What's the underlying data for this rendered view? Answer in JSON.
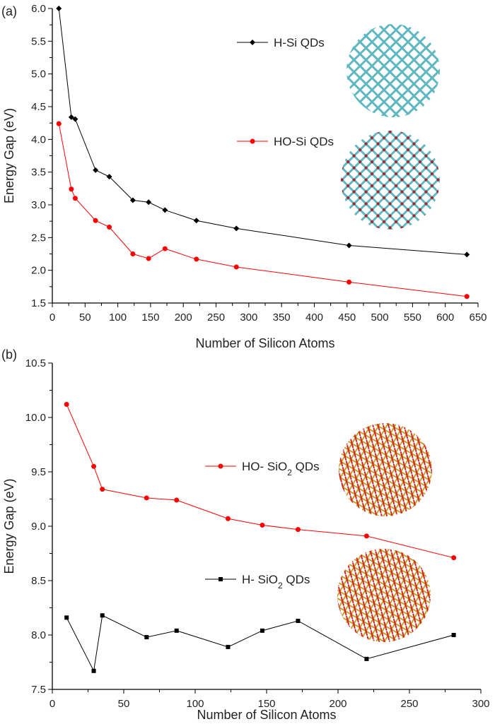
{
  "chart_data": [
    {
      "panel_label": "(a)",
      "type": "line",
      "xlabel": "Number of Silicon Atoms",
      "ylabel": "Energy Gap (eV)",
      "xlim": [
        0,
        650
      ],
      "ylim": [
        1.5,
        6.0
      ],
      "xticks": [
        0,
        50,
        100,
        150,
        200,
        250,
        300,
        350,
        400,
        450,
        500,
        550,
        600,
        650
      ],
      "yticks": [
        1.5,
        2.0,
        2.5,
        3.0,
        3.5,
        4.0,
        4.5,
        5.0,
        5.5,
        6.0
      ],
      "grid": false,
      "legend_placement": "top-right",
      "series": [
        {
          "name": "H-Si QDs",
          "color": "#000000",
          "marker": "diamond",
          "x": [
            10,
            29,
            35,
            66,
            87,
            123,
            147,
            172,
            220,
            281,
            453,
            633
          ],
          "y": [
            6.0,
            4.34,
            4.31,
            3.53,
            3.43,
            3.07,
            3.04,
            2.92,
            2.76,
            2.64,
            2.38,
            2.24
          ]
        },
        {
          "name": "HO-Si QDs",
          "color": "#ff0000",
          "marker": "circle",
          "x": [
            10,
            29,
            35,
            66,
            87,
            123,
            147,
            172,
            220,
            281,
            453,
            633
          ],
          "y": [
            4.24,
            3.24,
            3.1,
            2.76,
            2.66,
            2.25,
            2.18,
            2.33,
            2.17,
            2.05,
            1.82,
            1.6
          ]
        }
      ]
    },
    {
      "panel_label": "(b)",
      "type": "line",
      "xlabel": "Number of Silicon Atoms",
      "ylabel": "Energy Gap (eV)",
      "xlim": [
        0,
        300
      ],
      "ylim": [
        7.5,
        10.5
      ],
      "xticks": [
        0,
        50,
        100,
        150,
        200,
        250,
        300
      ],
      "yticks": [
        7.5,
        8.0,
        8.5,
        9.0,
        9.5,
        10.0,
        10.5
      ],
      "grid": false,
      "legend_placement": "right",
      "series": [
        {
          "name": "HO- SiO2 QDs",
          "color": "#ff0000",
          "marker": "circle",
          "x": [
            10,
            29,
            35,
            66,
            87,
            123,
            147,
            172,
            220,
            281
          ],
          "y": [
            10.12,
            9.55,
            9.34,
            9.26,
            9.24,
            9.07,
            9.01,
            8.97,
            8.91,
            8.71
          ]
        },
        {
          "name": "H- SiO2 QDs",
          "color": "#000000",
          "marker": "square",
          "x": [
            10,
            29,
            35,
            66,
            87,
            123,
            147,
            172,
            220,
            281
          ],
          "y": [
            8.16,
            7.67,
            8.18,
            7.98,
            8.04,
            7.89,
            8.04,
            8.13,
            7.78,
            8.0
          ]
        }
      ]
    }
  ]
}
